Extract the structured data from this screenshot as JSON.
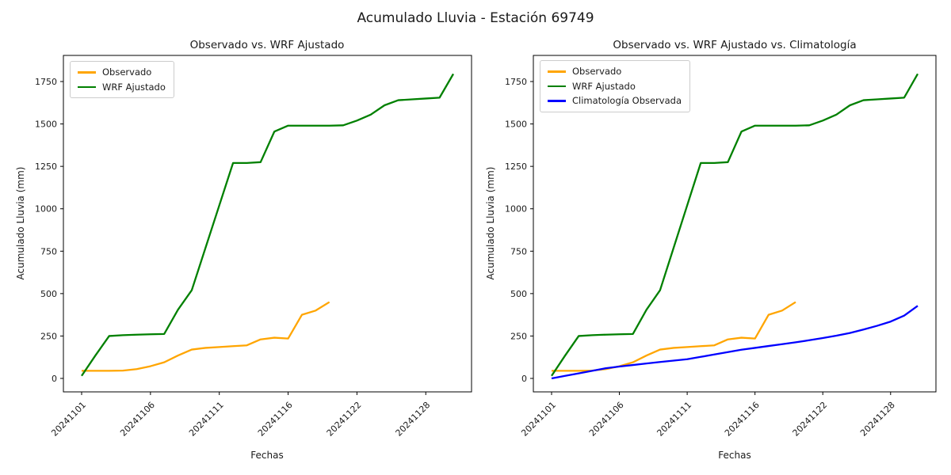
{
  "figure": {
    "title": "Acumulado Lluvia - Estación 69749",
    "background_color": "#ffffff",
    "text_color": "#1a1a1a"
  },
  "colors": {
    "observado": "#FFA500",
    "wrf_ajustado": "#008000",
    "climatologia": "#0000FF",
    "spine": "#000000",
    "legend_border": "#cccccc"
  },
  "chart_data": [
    {
      "type": "line",
      "title": "Observado vs. WRF Ajustado",
      "xlabel": "Fechas",
      "ylabel": "Acumulado Lluvia (mm)",
      "ylim": [
        0,
        1750
      ],
      "grid": false,
      "legend_position": "upper-left",
      "x": [
        "20241101",
        "20241102",
        "20241103",
        "20241104",
        "20241105",
        "20241106",
        "20241107",
        "20241108",
        "20241109",
        "20241110",
        "20241111",
        "20241112",
        "20241113",
        "20241114",
        "20241115",
        "20241116",
        "20241118",
        "20241119",
        "20241120",
        "20241121",
        "20241122",
        "20241124",
        "20241125",
        "20241126",
        "20241127",
        "20241128",
        "20241129",
        "20241130"
      ],
      "xticks": {
        "indices": [
          0,
          5,
          10,
          15,
          20,
          25
        ],
        "labels": [
          "20241101",
          "20241106",
          "20241111",
          "20241116",
          "20241122",
          "20241128"
        ]
      },
      "yticks": [
        0,
        250,
        500,
        750,
        1000,
        1250,
        1500,
        1750
      ],
      "series": [
        {
          "name": "Observado",
          "color": "#FFA500",
          "values": [
            45,
            45,
            45,
            46,
            55,
            72,
            95,
            135,
            170,
            180,
            185,
            190,
            195,
            230,
            240,
            235,
            375,
            400,
            450
          ]
        },
        {
          "name": "WRF Ajustado",
          "color": "#008000",
          "values": [
            15,
            135,
            250,
            255,
            258,
            260,
            262,
            405,
            520,
            770,
            1020,
            1270,
            1270,
            1275,
            1455,
            1490,
            1490,
            1490,
            1490,
            1492,
            1520,
            1555,
            1610,
            1640,
            1645,
            1650,
            1655,
            1795
          ]
        }
      ]
    },
    {
      "type": "line",
      "title": "Observado vs. WRF Ajustado vs. Climatología",
      "xlabel": "Fechas",
      "ylabel": "Acumulado Lluvia (mm)",
      "ylim": [
        0,
        1750
      ],
      "grid": false,
      "legend_position": "upper-left",
      "x": [
        "20241101",
        "20241102",
        "20241103",
        "20241104",
        "20241105",
        "20241106",
        "20241107",
        "20241108",
        "20241109",
        "20241110",
        "20241111",
        "20241112",
        "20241113",
        "20241114",
        "20241115",
        "20241116",
        "20241118",
        "20241119",
        "20241120",
        "20241121",
        "20241122",
        "20241124",
        "20241125",
        "20241126",
        "20241127",
        "20241128",
        "20241129",
        "20241130"
      ],
      "xticks": {
        "indices": [
          0,
          5,
          10,
          15,
          20,
          25
        ],
        "labels": [
          "20241101",
          "20241106",
          "20241111",
          "20241116",
          "20241122",
          "20241128"
        ]
      },
      "yticks": [
        0,
        250,
        500,
        750,
        1000,
        1250,
        1500,
        1750
      ],
      "series": [
        {
          "name": "Observado",
          "color": "#FFA500",
          "values": [
            45,
            45,
            45,
            46,
            55,
            72,
            95,
            135,
            170,
            180,
            185,
            190,
            195,
            230,
            240,
            235,
            375,
            400,
            450
          ]
        },
        {
          "name": "WRF Ajustado",
          "color": "#008000",
          "values": [
            15,
            135,
            250,
            255,
            258,
            260,
            262,
            405,
            520,
            770,
            1020,
            1270,
            1270,
            1275,
            1455,
            1490,
            1490,
            1490,
            1490,
            1492,
            1520,
            1555,
            1610,
            1640,
            1645,
            1650,
            1655,
            1795
          ]
        },
        {
          "name": "Climatología Observada",
          "color": "#0000FF",
          "values": [
            0,
            15,
            30,
            45,
            60,
            70,
            79,
            88,
            97,
            105,
            113,
            127,
            141,
            155,
            169,
            180,
            191,
            202,
            213,
            225,
            238,
            252,
            268,
            288,
            310,
            335,
            370,
            428
          ]
        }
      ]
    }
  ]
}
